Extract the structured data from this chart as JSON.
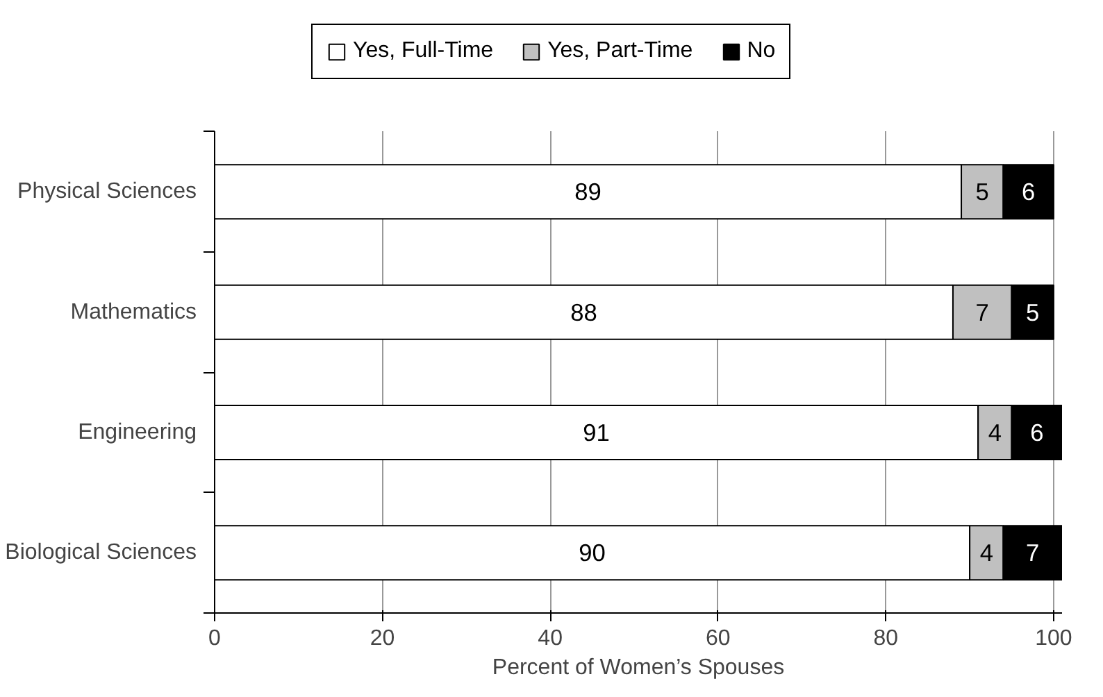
{
  "chart_data": {
    "type": "bar",
    "orientation": "horizontal",
    "stacked": true,
    "xlabel": "Percent of Women’s Spouses",
    "categories": [
      "Physical Sciences",
      "Mathematics",
      "Engineering",
      "Biological Sciences"
    ],
    "series": [
      {
        "name": "Yes, Full-Time",
        "color": "#ffffff",
        "values": [
          89,
          88,
          91,
          90
        ]
      },
      {
        "name": "Yes, Part-Time",
        "color": "#c0c0c0",
        "values": [
          5,
          7,
          4,
          4
        ]
      },
      {
        "name": "No",
        "color": "#000000",
        "values": [
          6,
          5,
          6,
          7
        ]
      }
    ],
    "xlim": [
      0,
      101
    ],
    "xticks": [
      0,
      20,
      40,
      60,
      80,
      100
    ],
    "grid": "x",
    "legend": "top",
    "data_labels": true
  }
}
